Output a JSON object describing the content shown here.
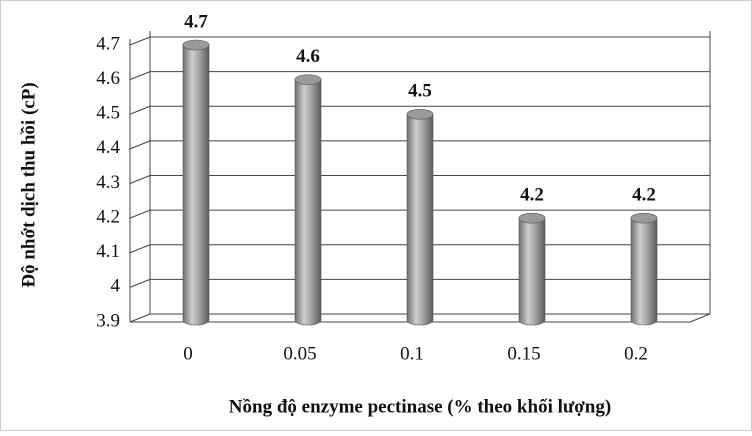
{
  "chart_data": {
    "type": "bar",
    "x_label": "Nồng độ enzyme pectinase (% theo khối lượng)",
    "y_label": "Độ nhớt dịch thu hồi (cP)",
    "categories": [
      "0",
      "0.05",
      "0.1",
      "0.15",
      "0.2"
    ],
    "values": [
      4.7,
      4.6,
      4.5,
      4.2,
      4.2
    ],
    "color": "#9a9a9a",
    "ylim": [
      3.9,
      4.7
    ],
    "yticks": [
      3.9,
      4,
      4.1,
      4.2,
      4.3,
      4.4,
      4.5,
      4.6,
      4.7
    ],
    "grid": true
  }
}
